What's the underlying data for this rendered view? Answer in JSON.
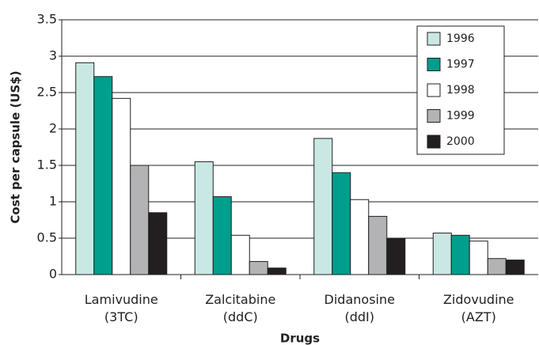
{
  "chart_data": {
    "type": "bar",
    "categories": [
      "Lamivudine\n(3TC)",
      "Zalcitabine\n(ddC)",
      "Didanosine\n(ddI)",
      "Zidovudine\n(AZT)"
    ],
    "series": [
      {
        "name": "1996",
        "color": "#c9e8e3",
        "values": [
          2.91,
          1.55,
          1.87,
          0.57
        ]
      },
      {
        "name": "1997",
        "color": "#009e8c",
        "values": [
          2.72,
          1.07,
          1.4,
          0.54
        ]
      },
      {
        "name": "1998",
        "color": "#ffffff",
        "values": [
          2.42,
          0.54,
          1.03,
          0.46
        ]
      },
      {
        "name": "1999",
        "color": "#b3b3b5",
        "values": [
          1.5,
          0.18,
          0.8,
          0.22
        ]
      },
      {
        "name": "2000",
        "color": "#231f20",
        "values": [
          0.85,
          0.09,
          0.49,
          0.2
        ]
      }
    ],
    "xlabel": "Drugs",
    "ylabel": "Cost per capsule (US$)",
    "ylim": [
      0,
      3.5
    ],
    "yticks": [
      0,
      0.5,
      1,
      1.5,
      2,
      2.5,
      3,
      3.5
    ],
    "grid": true,
    "legend": "upper right"
  }
}
